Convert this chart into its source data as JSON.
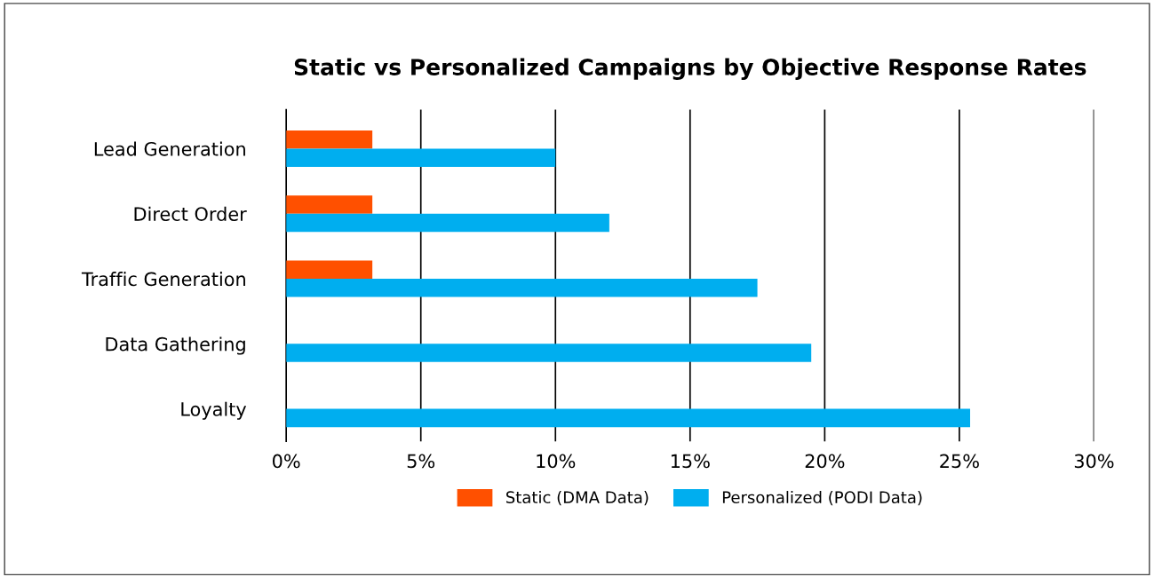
{
  "chart_data": {
    "type": "bar",
    "orientation": "horizontal",
    "title": "Static vs Personalized Campaigns by Objective Response Rates",
    "categories": [
      "Lead Generation",
      "Direct Order",
      "Traffic Generation",
      "Data Gathering",
      "Loyalty"
    ],
    "series": [
      {
        "name": "Static (DMA Data)",
        "color": "#ff5000",
        "values": [
          3.2,
          3.2,
          3.2,
          null,
          null
        ]
      },
      {
        "name": "Personalized (PODI Data)",
        "color": "#00aeef",
        "values": [
          10,
          12,
          17.5,
          19.5,
          25.4
        ]
      }
    ],
    "xlim": [
      0,
      30
    ],
    "xticks": [
      {
        "value": 0,
        "label": "0%"
      },
      {
        "value": 5,
        "label": "5%"
      },
      {
        "value": 10,
        "label": "10%"
      },
      {
        "value": 15,
        "label": "15%"
      },
      {
        "value": 20,
        "label": "20%"
      },
      {
        "value": 25,
        "label": "25%"
      },
      {
        "value": 30,
        "label": "30%"
      }
    ],
    "grid": "x",
    "legend": "bottom"
  }
}
